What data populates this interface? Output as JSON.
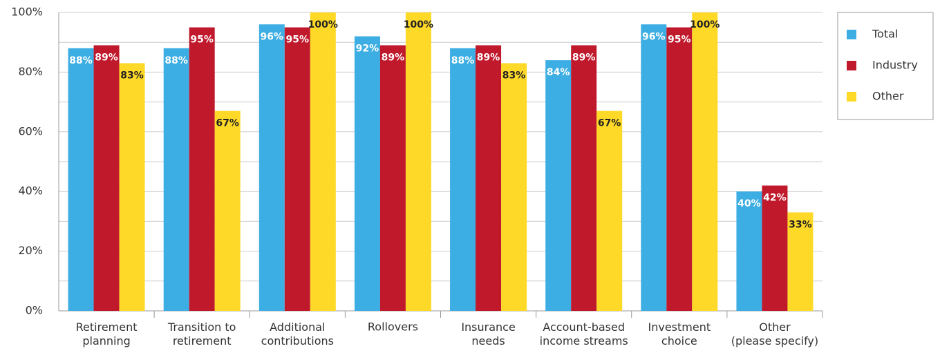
{
  "chart_data": {
    "type": "bar",
    "categories": [
      "Retirement\nplanning",
      "Transition to\nretirement",
      "Additional\ncontributions",
      "Rollovers",
      "Insurance\nneeds",
      "Account-based\nincome streams",
      "Investment\nchoice",
      "Other\n(please specify)"
    ],
    "series": [
      {
        "name": "Total",
        "color": "#3daee3",
        "label_color": "#ffffff",
        "values": [
          88,
          88,
          96,
          92,
          88,
          84,
          96,
          40
        ],
        "value_labels": [
          "88%",
          "88%",
          "96%",
          "92%",
          "88%",
          "84%",
          "96%",
          "40%"
        ]
      },
      {
        "name": "Industry",
        "color": "#c0192c",
        "label_color": "#ffffff",
        "values": [
          89,
          95,
          95,
          89,
          89,
          89,
          95,
          42
        ],
        "value_labels": [
          "89%",
          "95%",
          "95%",
          "89%",
          "89%",
          "89%",
          "95%",
          "42%"
        ]
      },
      {
        "name": "Other",
        "color": "#fed928",
        "label_color": "#222222",
        "values": [
          83,
          67,
          100,
          100,
          83,
          67,
          100,
          33
        ],
        "value_labels": [
          "83%",
          "67%",
          "100%",
          "100%",
          "83%",
          "67%",
          "100%",
          "33%"
        ]
      }
    ],
    "ylim": [
      0,
      100
    ],
    "yticks": [
      {
        "value": 0,
        "label": "0%"
      },
      {
        "value": 20,
        "label": "20%"
      },
      {
        "value": 40,
        "label": "40%"
      },
      {
        "value": 60,
        "label": "60%"
      },
      {
        "value": 80,
        "label": "80%"
      },
      {
        "value": 100,
        "label": "100%"
      }
    ],
    "y_minor_ticks": [
      10,
      30,
      50,
      70,
      90
    ],
    "grid": true,
    "legend": "right"
  }
}
